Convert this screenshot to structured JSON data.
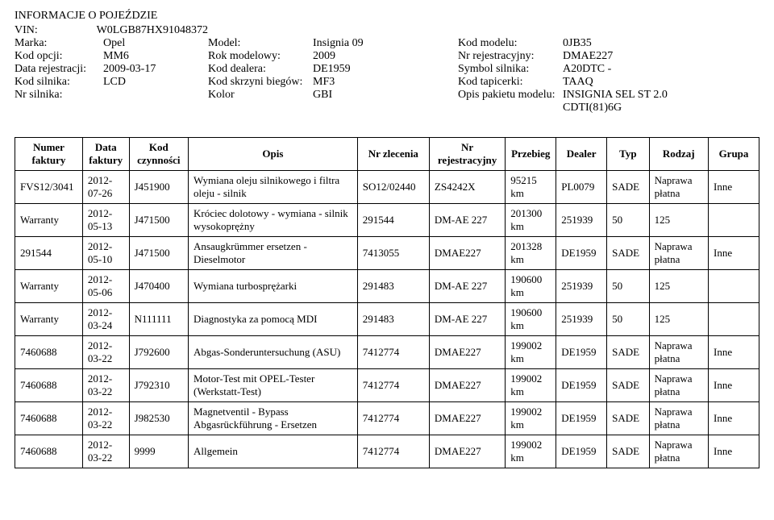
{
  "header": {
    "title": "INFORMACJE O POJEŹDZIE",
    "rows": [
      [
        {
          "label": "VIN:",
          "value": "W0LGB87HX91048372"
        }
      ],
      [
        {
          "label": "Marka:",
          "value": "Opel"
        },
        {
          "label": "Model:",
          "value": "Insignia 09"
        },
        {
          "label": "Kod modelu:",
          "value": "0JB35"
        }
      ],
      [
        {
          "label": "Kod opcji:",
          "value": "MM6"
        },
        {
          "label": "Rok modelowy:",
          "value": "2009"
        },
        {
          "label": "Nr rejestracyjny:",
          "value": "DMAE227"
        }
      ],
      [
        {
          "label": "Data rejestracji:",
          "value": "2009-03-17"
        },
        {
          "label": "Kod dealera:",
          "value": "DE1959"
        },
        {
          "label": "Symbol silnika:",
          "value": "A20DTC -"
        }
      ],
      [
        {
          "label": "Kod silnika:",
          "value": "LCD"
        },
        {
          "label": "Kod skrzyni biegów:",
          "value": "MF3"
        },
        {
          "label": "Kod tapicerki:",
          "value": "TAAQ"
        }
      ],
      [
        {
          "label": "Nr silnika:",
          "value": ""
        },
        {
          "label": "Kolor",
          "value": "GBI"
        },
        {
          "label": "Opis pakietu modelu:",
          "value": "INSIGNIA SEL ST 2.0 CDTI(81)6G"
        }
      ]
    ]
  },
  "table": {
    "columns": [
      "Numer faktury",
      "Data faktury",
      "Kod czynności",
      "Opis",
      "Nr zlecenia",
      "Nr rejestracyjny",
      "Przebieg",
      "Dealer",
      "Typ",
      "Rodzaj",
      "Grupa"
    ],
    "rows": [
      [
        "FVS12/3041",
        "2012-07-26",
        "J451900",
        "Wymiana oleju silnikowego i filtra oleju - silnik",
        "SO12/02440",
        "ZS4242X",
        "95215 km",
        "PL0079",
        "SADE",
        "Naprawa płatna",
        "Inne"
      ],
      [
        "Warranty",
        "2012-05-13",
        "J471500",
        "Króciec dolotowy - wymiana - silnik wysokoprężny",
        "291544",
        "DM-AE 227",
        "201300 km",
        "251939",
        "50",
        "125",
        ""
      ],
      [
        "291544",
        "2012-05-10",
        "J471500",
        "Ansaugkrümmer ersetzen - Dieselmotor",
        "7413055",
        "DMAE227",
        "201328 km",
        "DE1959",
        "SADE",
        "Naprawa płatna",
        "Inne"
      ],
      [
        "Warranty",
        "2012-05-06",
        "J470400",
        "Wymiana turbosprężarki",
        "291483",
        "DM-AE 227",
        "190600 km",
        "251939",
        "50",
        "125",
        ""
      ],
      [
        "Warranty",
        "2012-03-24",
        "N111111",
        "Diagnostyka za pomocą MDI",
        "291483",
        "DM-AE 227",
        "190600 km",
        "251939",
        "50",
        "125",
        ""
      ],
      [
        "7460688",
        "2012-03-22",
        "J792600",
        "Abgas-Sonderuntersuchung (ASU)",
        "7412774",
        "DMAE227",
        "199002 km",
        "DE1959",
        "SADE",
        "Naprawa płatna",
        "Inne"
      ],
      [
        "7460688",
        "2012-03-22",
        "J792310",
        "Motor-Test mit OPEL-Tester (Werkstatt-Test)",
        "7412774",
        "DMAE227",
        "199002 km",
        "DE1959",
        "SADE",
        "Naprawa płatna",
        "Inne"
      ],
      [
        "7460688",
        "2012-03-22",
        "J982530",
        "Magnetventil - Bypass Abgasrückführung - Ersetzen",
        "7412774",
        "DMAE227",
        "199002 km",
        "DE1959",
        "SADE",
        "Naprawa płatna",
        "Inne"
      ],
      [
        "7460688",
        "2012-03-22",
        "9999",
        "Allgemein",
        "7412774",
        "DMAE227",
        "199002 km",
        "DE1959",
        "SADE",
        "Naprawa płatna",
        "Inne"
      ]
    ]
  }
}
